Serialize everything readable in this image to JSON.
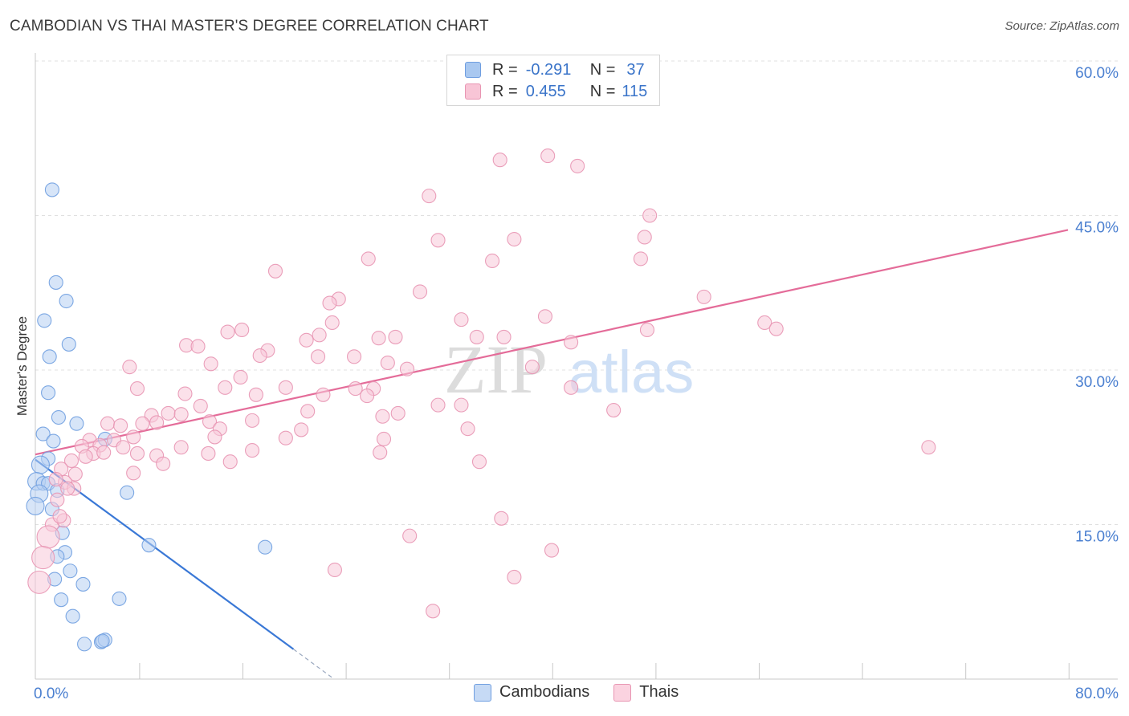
{
  "title": "CAMBODIAN VS THAI MASTER'S DEGREE CORRELATION CHART",
  "source": "Source: ZipAtlas.com",
  "watermark": {
    "zip": "ZIP",
    "atlas": "atlas"
  },
  "legend": {
    "r_label": "R =",
    "n_label": "N =",
    "rows": [
      {
        "r": "-0.291",
        "n": "37",
        "color": "#a9c8f0",
        "border": "#6f9ee0"
      },
      {
        "r": "0.455",
        "n": "115",
        "color": "#f8c5d6",
        "border": "#e895b2"
      }
    ]
  },
  "bottom_legend": [
    {
      "label": "Cambodians",
      "color": "#c6daf5",
      "border": "#6f9ee0"
    },
    {
      "label": "Thais",
      "color": "#fbd3e0",
      "border": "#e895b2"
    }
  ],
  "chart_data": {
    "type": "scatter",
    "title": "CAMBODIAN VS THAI MASTER'S DEGREE CORRELATION CHART",
    "xlabel": "",
    "ylabel": "Master's Degree",
    "xlim": [
      0,
      80
    ],
    "ylim": [
      0,
      60
    ],
    "x_tick_labels": [
      {
        "v": 0,
        "t": "0.0%"
      },
      {
        "v": 80,
        "t": "80.0%"
      }
    ],
    "y_tick_labels": [
      {
        "v": 15,
        "t": "15.0%"
      },
      {
        "v": 30,
        "t": "30.0%"
      },
      {
        "v": 45,
        "t": "45.0%"
      },
      {
        "v": 60,
        "t": "60.0%"
      }
    ],
    "y_gridlines": [
      15,
      30,
      45,
      60
    ],
    "x_minor_ticks": [
      8,
      16,
      24,
      32,
      40,
      48,
      56,
      64,
      72,
      80
    ],
    "series": [
      {
        "name": "Cambodians",
        "color": "#6f9ee0",
        "fill": "#b7d0f2",
        "trend": {
          "x0": 0,
          "y0": 21.3,
          "x1": 20,
          "y1": 2.9,
          "dash_to": 23
        },
        "points": [
          [
            1.3,
            47.5
          ],
          [
            1.6,
            38.5
          ],
          [
            2.4,
            36.7
          ],
          [
            0.7,
            34.8
          ],
          [
            2.6,
            32.5
          ],
          [
            1.1,
            31.3
          ],
          [
            1.0,
            27.8
          ],
          [
            1.8,
            25.4
          ],
          [
            3.2,
            24.8
          ],
          [
            0.6,
            23.8
          ],
          [
            1.4,
            23.1
          ],
          [
            5.4,
            23.3
          ],
          [
            1.0,
            21.4
          ],
          [
            0.4,
            20.8
          ],
          [
            0.1,
            19.2
          ],
          [
            0.6,
            19.0
          ],
          [
            1.0,
            19.0
          ],
          [
            0.3,
            18.0
          ],
          [
            1.7,
            18.3
          ],
          [
            7.1,
            18.1
          ],
          [
            0.0,
            16.8
          ],
          [
            1.3,
            16.5
          ],
          [
            2.1,
            14.2
          ],
          [
            8.8,
            13.0
          ],
          [
            17.8,
            12.8
          ],
          [
            2.3,
            12.3
          ],
          [
            1.7,
            11.9
          ],
          [
            2.7,
            10.5
          ],
          [
            1.5,
            9.7
          ],
          [
            3.7,
            9.2
          ],
          [
            2.0,
            7.7
          ],
          [
            6.5,
            7.8
          ],
          [
            2.9,
            6.1
          ],
          [
            5.1,
            3.6
          ],
          [
            5.4,
            3.8
          ],
          [
            5.2,
            3.7
          ],
          [
            3.8,
            3.4
          ]
        ]
      },
      {
        "name": "Thais",
        "color": "#e895b2",
        "fill": "#f8c8d8",
        "trend": {
          "x0": 0,
          "y0": 21.8,
          "x1": 80,
          "y1": 43.6
        },
        "points": [
          [
            36.0,
            50.4
          ],
          [
            39.7,
            50.8
          ],
          [
            42.0,
            49.8
          ],
          [
            30.5,
            46.9
          ],
          [
            47.6,
            45.0
          ],
          [
            31.2,
            42.6
          ],
          [
            37.1,
            42.7
          ],
          [
            47.2,
            42.9
          ],
          [
            25.8,
            40.8
          ],
          [
            35.4,
            40.6
          ],
          [
            46.9,
            40.8
          ],
          [
            18.6,
            39.6
          ],
          [
            29.8,
            37.6
          ],
          [
            23.5,
            36.9
          ],
          [
            22.8,
            36.5
          ],
          [
            51.8,
            37.1
          ],
          [
            39.5,
            35.2
          ],
          [
            33.0,
            34.9
          ],
          [
            23.0,
            34.6
          ],
          [
            56.5,
            34.6
          ],
          [
            16.0,
            33.9
          ],
          [
            14.9,
            33.7
          ],
          [
            47.4,
            33.9
          ],
          [
            57.4,
            34.0
          ],
          [
            22.0,
            33.4
          ],
          [
            26.6,
            33.1
          ],
          [
            27.9,
            33.2
          ],
          [
            21.0,
            32.9
          ],
          [
            34.2,
            33.2
          ],
          [
            36.3,
            33.2
          ],
          [
            41.5,
            32.7
          ],
          [
            11.7,
            32.4
          ],
          [
            12.6,
            32.3
          ],
          [
            18.0,
            31.9
          ],
          [
            17.4,
            31.4
          ],
          [
            21.9,
            31.3
          ],
          [
            24.7,
            31.3
          ],
          [
            27.3,
            30.7
          ],
          [
            28.8,
            30.1
          ],
          [
            13.6,
            30.6
          ],
          [
            7.3,
            30.3
          ],
          [
            38.5,
            30.3
          ],
          [
            15.9,
            29.3
          ],
          [
            14.7,
            28.3
          ],
          [
            19.4,
            28.3
          ],
          [
            7.9,
            28.2
          ],
          [
            24.8,
            28.2
          ],
          [
            26.2,
            28.2
          ],
          [
            41.5,
            28.3
          ],
          [
            11.6,
            27.7
          ],
          [
            17.1,
            27.6
          ],
          [
            25.7,
            27.5
          ],
          [
            22.3,
            27.6
          ],
          [
            21.1,
            26.0
          ],
          [
            31.2,
            26.6
          ],
          [
            33.0,
            26.6
          ],
          [
            28.1,
            25.8
          ],
          [
            12.8,
            26.5
          ],
          [
            10.3,
            25.8
          ],
          [
            11.3,
            25.7
          ],
          [
            9.0,
            25.6
          ],
          [
            16.8,
            25.1
          ],
          [
            26.9,
            25.5
          ],
          [
            44.8,
            26.1
          ],
          [
            13.5,
            25.0
          ],
          [
            9.4,
            24.9
          ],
          [
            8.3,
            24.8
          ],
          [
            5.6,
            24.8
          ],
          [
            6.6,
            24.6
          ],
          [
            14.3,
            24.3
          ],
          [
            20.6,
            24.2
          ],
          [
            13.9,
            23.5
          ],
          [
            19.4,
            23.4
          ],
          [
            27.0,
            23.3
          ],
          [
            33.5,
            24.3
          ],
          [
            7.6,
            23.5
          ],
          [
            6.1,
            23.2
          ],
          [
            4.2,
            23.2
          ],
          [
            3.6,
            22.6
          ],
          [
            5.0,
            22.7
          ],
          [
            6.8,
            22.5
          ],
          [
            11.3,
            22.5
          ],
          [
            13.4,
            21.9
          ],
          [
            16.8,
            22.2
          ],
          [
            4.5,
            21.9
          ],
          [
            5.3,
            22.0
          ],
          [
            7.9,
            21.9
          ],
          [
            9.4,
            21.7
          ],
          [
            3.9,
            21.6
          ],
          [
            26.7,
            22.0
          ],
          [
            34.4,
            21.1
          ],
          [
            69.2,
            22.5
          ],
          [
            15.1,
            21.1
          ],
          [
            2.8,
            21.2
          ],
          [
            9.9,
            20.9
          ],
          [
            2.0,
            20.4
          ],
          [
            7.6,
            20.0
          ],
          [
            3.1,
            19.9
          ],
          [
            2.3,
            19.1
          ],
          [
            1.6,
            19.4
          ],
          [
            3.0,
            18.5
          ],
          [
            2.5,
            18.5
          ],
          [
            1.7,
            17.4
          ],
          [
            36.1,
            15.6
          ],
          [
            1.3,
            15.0
          ],
          [
            1.0,
            13.8
          ],
          [
            29.0,
            13.9
          ],
          [
            40.0,
            12.5
          ],
          [
            0.6,
            11.8
          ],
          [
            23.2,
            10.6
          ],
          [
            37.1,
            9.9
          ],
          [
            0.3,
            9.4
          ],
          [
            30.8,
            6.6
          ],
          [
            2.2,
            15.4
          ],
          [
            1.9,
            15.8
          ]
        ]
      }
    ]
  }
}
